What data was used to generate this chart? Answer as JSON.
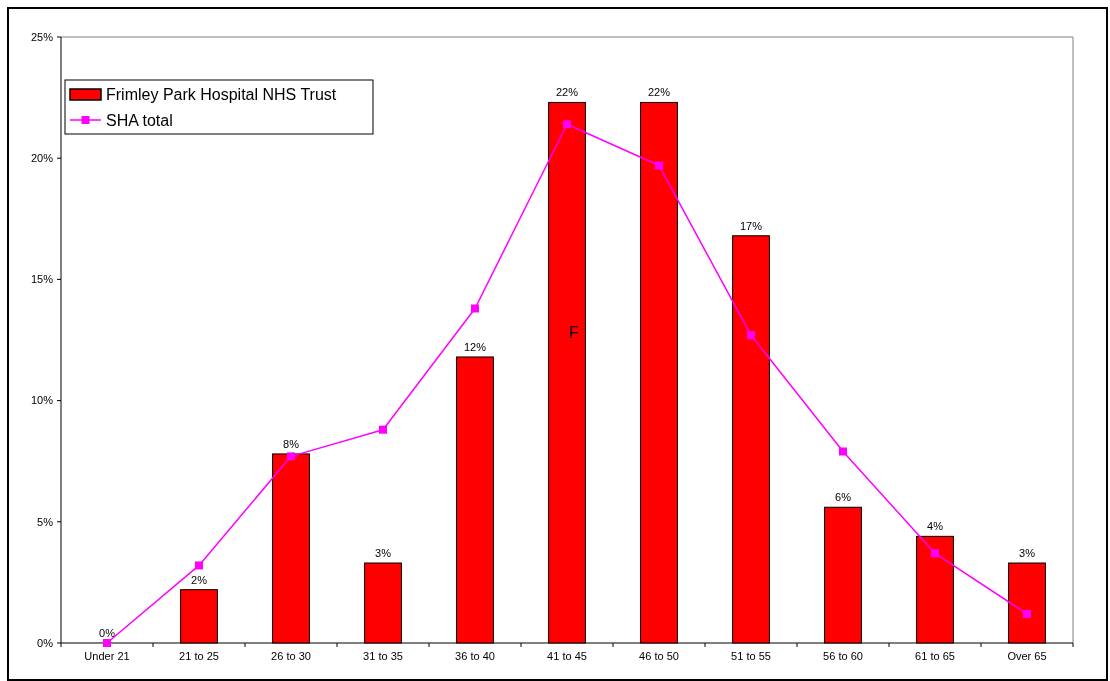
{
  "chart_data": {
    "type": "bar",
    "categories": [
      "Under 21",
      "21 to 25",
      "26 to 30",
      "31 to 35",
      "36 to 40",
      "41 to 45",
      "46 to 50",
      "51 to 55",
      "56 to 60",
      "61 to 65",
      "Over 65"
    ],
    "series": [
      {
        "name": "Frimley Park Hospital NHS Trust",
        "color": "#ff0000",
        "values": [
          0,
          2.2,
          7.8,
          3.3,
          11.8,
          22.3,
          22.3,
          16.8,
          5.6,
          4.4,
          3.3
        ],
        "value_labels": [
          "0%",
          "2%",
          "8%",
          "3%",
          "12%",
          "22%",
          "22%",
          "17%",
          "6%",
          "4%",
          "3%"
        ]
      },
      {
        "name": "SHA total",
        "type": "line",
        "color": "#ff00ff",
        "marker": "square",
        "values": [
          0,
          3.2,
          7.7,
          8.8,
          13.8,
          21.4,
          19.7,
          12.7,
          7.9,
          3.7,
          1.2
        ]
      }
    ],
    "ylim": [
      0,
      25
    ],
    "yticks": [
      {
        "value": 0,
        "label": "0%"
      },
      {
        "value": 5,
        "label": "5%"
      },
      {
        "value": 10,
        "label": "10%"
      },
      {
        "value": 15,
        "label": "15%"
      },
      {
        "value": 20,
        "label": "20%"
      },
      {
        "value": 25,
        "label": "25%"
      }
    ],
    "legend": "top left",
    "annotations": [
      "F"
    ]
  }
}
